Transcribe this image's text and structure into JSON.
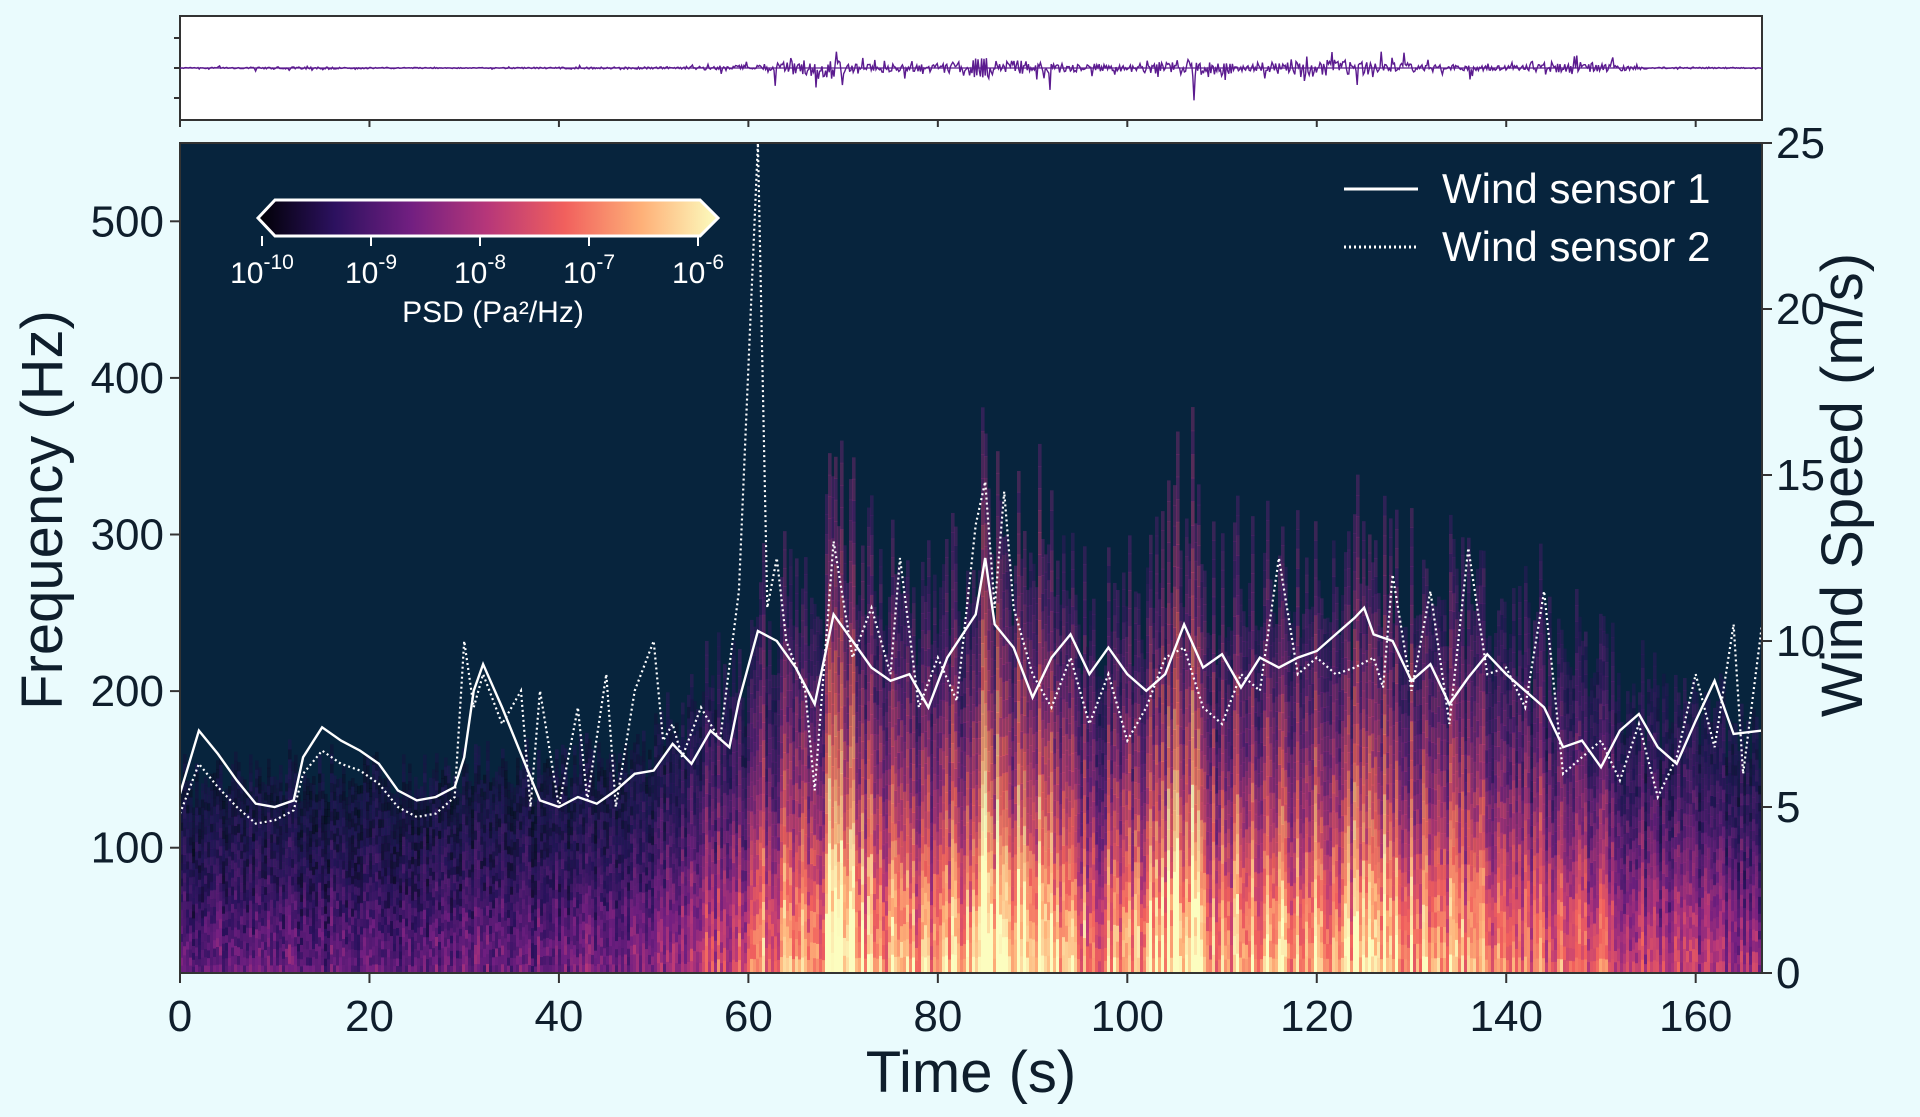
{
  "chart_data": [
    {
      "type": "line",
      "panel": "pressure waveform",
      "xlim": [
        0,
        167
      ],
      "description_visible": "time-series trace of pressure fluctuations; largest bursts near 68 s, 85 s, 106 s, 122 s",
      "x_ticks": [
        0,
        20,
        40,
        60,
        80,
        100,
        120,
        140,
        160
      ],
      "envelope": [
        {
          "t": 0,
          "amp": 0.04
        },
        {
          "t": 12,
          "amp": 0.1
        },
        {
          "t": 30,
          "amp": 0.04
        },
        {
          "t": 52,
          "amp": 0.12
        },
        {
          "t": 61,
          "amp": 0.3
        },
        {
          "t": 68,
          "amp": 0.95
        },
        {
          "t": 72,
          "amp": 0.45
        },
        {
          "t": 80,
          "amp": 0.35
        },
        {
          "t": 85,
          "amp": 1.0
        },
        {
          "t": 90,
          "amp": 0.55
        },
        {
          "t": 100,
          "amp": 0.3
        },
        {
          "t": 106,
          "amp": 0.85
        },
        {
          "t": 112,
          "amp": 0.45
        },
        {
          "t": 122,
          "amp": 0.75
        },
        {
          "t": 130,
          "amp": 0.4
        },
        {
          "t": 140,
          "amp": 0.2
        },
        {
          "t": 148,
          "amp": 0.55
        },
        {
          "t": 155,
          "amp": 0.08
        },
        {
          "t": 167,
          "amp": 0.04
        }
      ],
      "color": "#5b1b8f"
    },
    {
      "type": "heatmap",
      "panel": "spectrogram",
      "xlabel": "Time (s)",
      "ylabel": "Frequency (Hz)",
      "y2label": "Wind Speed (m/s)",
      "xlim": [
        0,
        167
      ],
      "ylim": [
        20,
        550
      ],
      "y2lim": [
        0,
        25
      ],
      "x_ticks": [
        "0",
        "20",
        "40",
        "60",
        "80",
        "100",
        "120",
        "140",
        "160"
      ],
      "y_ticks": [
        "100",
        "200",
        "300",
        "400",
        "500"
      ],
      "y2_ticks": [
        "0",
        "5",
        "10",
        "15",
        "20",
        "25"
      ],
      "background_color": "#07243d",
      "colorbar": {
        "label": "PSD (Pa²/Hz)",
        "ticks": [
          {
            "base": "10",
            "exp": "-10"
          },
          {
            "base": "10",
            "exp": "-9"
          },
          {
            "base": "10",
            "exp": "-8"
          },
          {
            "base": "10",
            "exp": "-7"
          },
          {
            "base": "10",
            "exp": "-6"
          }
        ],
        "colormap": [
          "#000004",
          "#2c115f",
          "#721f81",
          "#b73779",
          "#f1605d",
          "#feb078",
          "#fcfdbf"
        ]
      },
      "intensity_profile": [
        {
          "t": 0,
          "level": 0.25
        },
        {
          "t": 10,
          "level": 0.3
        },
        {
          "t": 20,
          "level": 0.25
        },
        {
          "t": 30,
          "level": 0.3
        },
        {
          "t": 40,
          "level": 0.3
        },
        {
          "t": 50,
          "level": 0.35
        },
        {
          "t": 55,
          "level": 0.5
        },
        {
          "t": 60,
          "level": 0.6
        },
        {
          "t": 62,
          "level": 0.75
        },
        {
          "t": 67,
          "level": 0.7
        },
        {
          "t": 68,
          "level": 0.95
        },
        {
          "t": 72,
          "level": 0.8
        },
        {
          "t": 80,
          "level": 0.7
        },
        {
          "t": 85,
          "level": 1.0
        },
        {
          "t": 88,
          "level": 0.9
        },
        {
          "t": 95,
          "level": 0.7
        },
        {
          "t": 100,
          "level": 0.7
        },
        {
          "t": 106,
          "level": 0.95
        },
        {
          "t": 110,
          "level": 0.75
        },
        {
          "t": 120,
          "level": 0.8
        },
        {
          "t": 125,
          "level": 0.85
        },
        {
          "t": 135,
          "level": 0.75
        },
        {
          "t": 140,
          "level": 0.7
        },
        {
          "t": 150,
          "level": 0.55
        },
        {
          "t": 160,
          "level": 0.45
        },
        {
          "t": 167,
          "level": 0.4
        }
      ]
    },
    {
      "type": "line",
      "panel": "wind speed (right axis)",
      "x_unit": "s",
      "y_unit": "m/s",
      "series": [
        {
          "name": "Wind sensor 1",
          "style": "solid",
          "color": "#ffffff",
          "points": [
            [
              0,
              5.4
            ],
            [
              2,
              7.3
            ],
            [
              4,
              6.6
            ],
            [
              6,
              5.8
            ],
            [
              8,
              5.1
            ],
            [
              10,
              5.0
            ],
            [
              12,
              5.2
            ],
            [
              13,
              6.5
            ],
            [
              15,
              7.4
            ],
            [
              17,
              7.0
            ],
            [
              19,
              6.7
            ],
            [
              21,
              6.3
            ],
            [
              23,
              5.5
            ],
            [
              25,
              5.2
            ],
            [
              27,
              5.3
            ],
            [
              29,
              5.6
            ],
            [
              30,
              6.5
            ],
            [
              31,
              8.5
            ],
            [
              32,
              9.3
            ],
            [
              34,
              8.0
            ],
            [
              36,
              6.6
            ],
            [
              38,
              5.2
            ],
            [
              40,
              5.0
            ],
            [
              42,
              5.3
            ],
            [
              44,
              5.1
            ],
            [
              46,
              5.5
            ],
            [
              48,
              6.0
            ],
            [
              50,
              6.1
            ],
            [
              52,
              6.9
            ],
            [
              54,
              6.3
            ],
            [
              56,
              7.3
            ],
            [
              58,
              6.8
            ],
            [
              59,
              8.2
            ],
            [
              61,
              10.3
            ],
            [
              63,
              10.0
            ],
            [
              65,
              9.2
            ],
            [
              67,
              8.1
            ],
            [
              69,
              10.8
            ],
            [
              71,
              10.0
            ],
            [
              73,
              9.2
            ],
            [
              75,
              8.8
            ],
            [
              77,
              9.0
            ],
            [
              79,
              8.0
            ],
            [
              81,
              9.5
            ],
            [
              84,
              10.8
            ],
            [
              85,
              12.5
            ],
            [
              86,
              10.5
            ],
            [
              88,
              9.8
            ],
            [
              90,
              8.3
            ],
            [
              92,
              9.5
            ],
            [
              94,
              10.2
            ],
            [
              96,
              9.0
            ],
            [
              98,
              9.8
            ],
            [
              100,
              9.0
            ],
            [
              102,
              8.5
            ],
            [
              104,
              9.0
            ],
            [
              106,
              10.5
            ],
            [
              108,
              9.2
            ],
            [
              110,
              9.6
            ],
            [
              112,
              8.6
            ],
            [
              114,
              9.5
            ],
            [
              116,
              9.2
            ],
            [
              118,
              9.5
            ],
            [
              120,
              9.7
            ],
            [
              122,
              10.2
            ],
            [
              124,
              10.7
            ],
            [
              125,
              11.0
            ],
            [
              126,
              10.2
            ],
            [
              128,
              10.0
            ],
            [
              130,
              8.8
            ],
            [
              132,
              9.3
            ],
            [
              134,
              8.1
            ],
            [
              136,
              8.9
            ],
            [
              138,
              9.6
            ],
            [
              140,
              9.0
            ],
            [
              142,
              8.5
            ],
            [
              144,
              8.0
            ],
            [
              146,
              6.8
            ],
            [
              148,
              7.0
            ],
            [
              150,
              6.2
            ],
            [
              152,
              7.3
            ],
            [
              154,
              7.8
            ],
            [
              156,
              6.8
            ],
            [
              158,
              6.3
            ],
            [
              160,
              7.6
            ],
            [
              162,
              8.8
            ],
            [
              164,
              7.2
            ],
            [
              167,
              7.3
            ]
          ]
        },
        {
          "name": "Wind sensor 2",
          "style": "dotted",
          "color": "#ffffff",
          "points": [
            [
              0,
              4.8
            ],
            [
              2,
              6.3
            ],
            [
              4,
              5.6
            ],
            [
              6,
              5.0
            ],
            [
              8,
              4.5
            ],
            [
              10,
              4.6
            ],
            [
              12,
              4.9
            ],
            [
              13,
              6.0
            ],
            [
              15,
              6.7
            ],
            [
              17,
              6.3
            ],
            [
              19,
              6.1
            ],
            [
              21,
              5.7
            ],
            [
              23,
              5.0
            ],
            [
              25,
              4.7
            ],
            [
              27,
              4.8
            ],
            [
              29,
              5.3
            ],
            [
              30,
              10.0
            ],
            [
              31,
              8.0
            ],
            [
              32,
              9.0
            ],
            [
              34,
              7.5
            ],
            [
              36,
              8.5
            ],
            [
              37,
              5.0
            ],
            [
              38,
              8.5
            ],
            [
              40,
              5.0
            ],
            [
              42,
              8.0
            ],
            [
              43,
              5.2
            ],
            [
              45,
              9.0
            ],
            [
              46,
              5.0
            ],
            [
              48,
              8.5
            ],
            [
              50,
              10.0
            ],
            [
              51,
              7.0
            ],
            [
              52,
              7.5
            ],
            [
              53,
              6.5
            ],
            [
              55,
              8.0
            ],
            [
              57,
              7.0
            ],
            [
              59,
              11.5
            ],
            [
              61,
              25.0
            ],
            [
              62,
              11.0
            ],
            [
              63,
              12.5
            ],
            [
              64,
              10.0
            ],
            [
              66,
              8.5
            ],
            [
              67,
              5.5
            ],
            [
              69,
              13.0
            ],
            [
              71,
              9.5
            ],
            [
              73,
              11.0
            ],
            [
              75,
              9.0
            ],
            [
              76,
              12.5
            ],
            [
              78,
              8.0
            ],
            [
              80,
              9.5
            ],
            [
              82,
              8.2
            ],
            [
              84,
              13.5
            ],
            [
              85,
              14.8
            ],
            [
              86,
              11.0
            ],
            [
              87,
              14.5
            ],
            [
              88,
              11.0
            ],
            [
              90,
              9.0
            ],
            [
              92,
              8.0
            ],
            [
              94,
              9.5
            ],
            [
              96,
              7.5
            ],
            [
              98,
              9.0
            ],
            [
              100,
              7.0
            ],
            [
              102,
              8.0
            ],
            [
              104,
              9.5
            ],
            [
              106,
              9.8
            ],
            [
              108,
              8.0
            ],
            [
              110,
              7.5
            ],
            [
              112,
              9.0
            ],
            [
              114,
              8.5
            ],
            [
              116,
              12.5
            ],
            [
              118,
              9.0
            ],
            [
              120,
              9.5
            ],
            [
              122,
              9.0
            ],
            [
              124,
              9.2
            ],
            [
              126,
              9.5
            ],
            [
              127,
              8.6
            ],
            [
              128,
              12.0
            ],
            [
              130,
              8.5
            ],
            [
              132,
              11.5
            ],
            [
              134,
              7.5
            ],
            [
              136,
              12.8
            ],
            [
              138,
              9.0
            ],
            [
              140,
              9.2
            ],
            [
              142,
              8.0
            ],
            [
              144,
              11.5
            ],
            [
              146,
              6.0
            ],
            [
              148,
              6.5
            ],
            [
              150,
              7.0
            ],
            [
              152,
              5.8
            ],
            [
              154,
              7.5
            ],
            [
              156,
              5.3
            ],
            [
              158,
              6.5
            ],
            [
              160,
              9.0
            ],
            [
              162,
              6.8
            ],
            [
              164,
              10.5
            ],
            [
              165,
              6.0
            ],
            [
              167,
              10.5
            ]
          ]
        }
      ]
    }
  ]
}
